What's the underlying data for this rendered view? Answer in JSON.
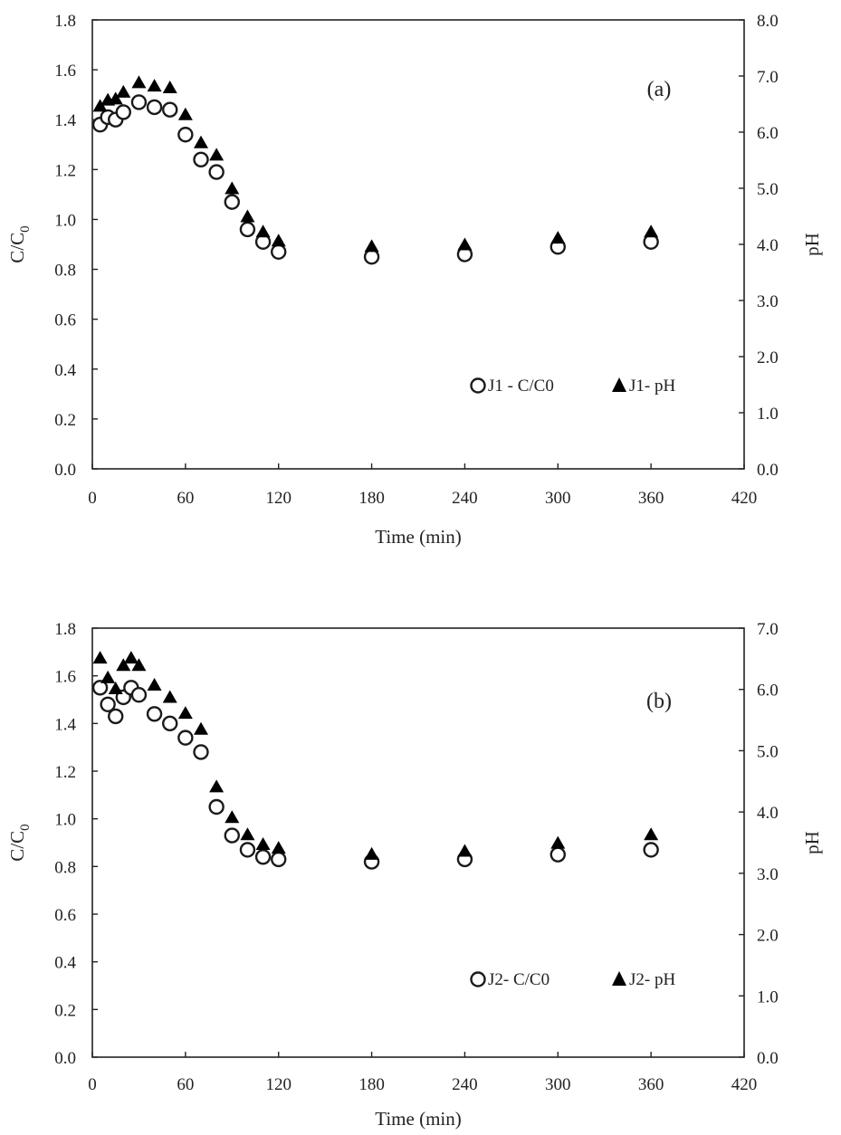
{
  "chart_data": [
    {
      "type": "scatter",
      "panel_label": "(a)",
      "xlabel": "Time (min)",
      "ylabel_left": "C/C0",
      "ylabel_right": "pH",
      "xlim": [
        0,
        420
      ],
      "ylim_left": [
        0,
        1.8
      ],
      "ylim_right": [
        0,
        8
      ],
      "x_ticks": [
        "0",
        "60",
        "120",
        "180",
        "240",
        "300",
        "360",
        "420"
      ],
      "y_left_ticks": [
        "0.0",
        "0.2",
        "0.4",
        "0.6",
        "0.8",
        "1.0",
        "1.2",
        "1.4",
        "1.6",
        "1.8"
      ],
      "y_right_ticks": [
        "0.0",
        "1.0",
        "2.0",
        "3.0",
        "4.0",
        "5.0",
        "6.0",
        "7.0",
        "8.0"
      ],
      "grid": false,
      "legend_position": "bottom-right",
      "series": [
        {
          "name": "J1 - C/C0",
          "axis": "left",
          "marker": "open-circle",
          "x": [
            5,
            10,
            15,
            20,
            30,
            40,
            50,
            60,
            70,
            80,
            90,
            100,
            110,
            120,
            180,
            240,
            300,
            360
          ],
          "y": [
            1.38,
            1.41,
            1.4,
            1.43,
            1.47,
            1.45,
            1.44,
            1.34,
            1.24,
            1.19,
            1.07,
            0.96,
            0.91,
            0.87,
            0.85,
            0.86,
            0.89,
            0.91
          ]
        },
        {
          "name": "J1- pH",
          "axis": "right",
          "marker": "filled-triangle",
          "x": [
            5,
            10,
            15,
            20,
            30,
            40,
            50,
            60,
            70,
            80,
            90,
            100,
            110,
            120,
            180,
            240,
            300,
            360
          ],
          "y": [
            6.45,
            6.56,
            6.58,
            6.7,
            6.87,
            6.81,
            6.78,
            6.3,
            5.8,
            5.58,
            4.98,
            4.48,
            4.21,
            4.05,
            3.95,
            3.98,
            4.1,
            4.21
          ]
        }
      ]
    },
    {
      "type": "scatter",
      "panel_label": "(b)",
      "xlabel": "Time (min)",
      "ylabel_left": "C/C0",
      "ylabel_right": "pH",
      "xlim": [
        0,
        420
      ],
      "ylim_left": [
        0,
        1.8
      ],
      "ylim_right": [
        0,
        7
      ],
      "x_ticks": [
        "0",
        "60",
        "120",
        "180",
        "240",
        "300",
        "360",
        "420"
      ],
      "y_left_ticks": [
        "0.0",
        "0.2",
        "0.4",
        "0.6",
        "0.8",
        "1.0",
        "1.2",
        "1.4",
        "1.6",
        "1.8"
      ],
      "y_right_ticks": [
        "0.0",
        "1.0",
        "2.0",
        "3.0",
        "4.0",
        "5.0",
        "6.0",
        "7.0"
      ],
      "grid": false,
      "legend_position": "bottom-right",
      "series": [
        {
          "name": "J2- C/C0",
          "axis": "left",
          "marker": "open-circle",
          "x": [
            5,
            10,
            15,
            20,
            25,
            30,
            40,
            50,
            60,
            70,
            80,
            90,
            100,
            110,
            120,
            180,
            240,
            300,
            360
          ],
          "y": [
            1.55,
            1.48,
            1.43,
            1.51,
            1.55,
            1.52,
            1.44,
            1.4,
            1.34,
            1.28,
            1.05,
            0.93,
            0.87,
            0.84,
            0.83,
            0.82,
            0.83,
            0.85,
            0.87
          ]
        },
        {
          "name": "J2- pH",
          "axis": "right",
          "marker": "filled-triangle",
          "x": [
            5,
            10,
            15,
            20,
            25,
            30,
            40,
            50,
            60,
            70,
            80,
            90,
            100,
            110,
            120,
            180,
            240,
            300,
            360
          ],
          "y": [
            6.5,
            6.18,
            6.0,
            6.38,
            6.5,
            6.38,
            6.06,
            5.86,
            5.6,
            5.34,
            4.4,
            3.9,
            3.62,
            3.46,
            3.4,
            3.3,
            3.35,
            3.48,
            3.62
          ]
        }
      ]
    }
  ]
}
